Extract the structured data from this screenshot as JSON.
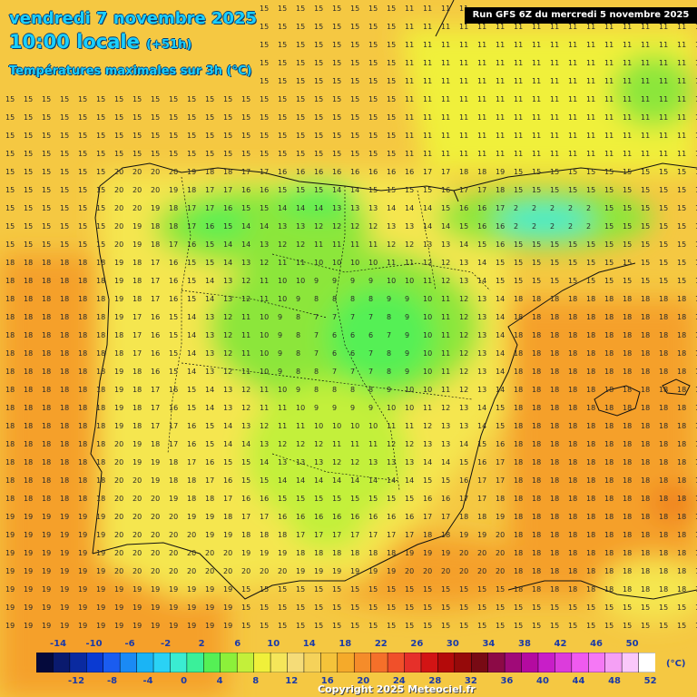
{
  "header": {
    "date": "vendredi 7 novembre 2025",
    "time": "10:00 locale",
    "offset": "(+51h)",
    "parameter": "Températures maximales sur 3h (°C)",
    "run": "Run GFS 6Z du mercredi 5 novembre 2025"
  },
  "legend": {
    "unit": "(°C)",
    "top_labels": [
      "-14",
      "-10",
      "-6",
      "-2",
      "2",
      "6",
      "10",
      "14",
      "18",
      "22",
      "26",
      "30",
      "34",
      "38",
      "42",
      "46",
      "50"
    ],
    "bottom_labels": [
      "-12",
      "-8",
      "-4",
      "0",
      "4",
      "8",
      "12",
      "16",
      "20",
      "24",
      "28",
      "32",
      "36",
      "40",
      "44",
      "48",
      "52"
    ],
    "colors": [
      "#050a3c",
      "#0a1a6e",
      "#0a2aa0",
      "#0a3ad2",
      "#1a5cf0",
      "#1a8af5",
      "#1ab4f5",
      "#2ad2f5",
      "#3aecd2",
      "#3af09a",
      "#55f055",
      "#8cf03a",
      "#c3f03a",
      "#f0f03a",
      "#f5e65a",
      "#f5dc78",
      "#f5d25a",
      "#f5c33a",
      "#f5aa2a",
      "#f58c2a",
      "#f5702a",
      "#f0502a",
      "#e6302a",
      "#d21414",
      "#b40a0a",
      "#960a0a",
      "#780a14",
      "#8c0a46",
      "#a00a78",
      "#b40aa0",
      "#c81ec8",
      "#dc3cdc",
      "#f05af0",
      "#f578f5",
      "#f5a0f5",
      "#fac8fa",
      "#ffffff"
    ]
  },
  "copyright": "Copyright 2025 Meteociel.fr"
}
